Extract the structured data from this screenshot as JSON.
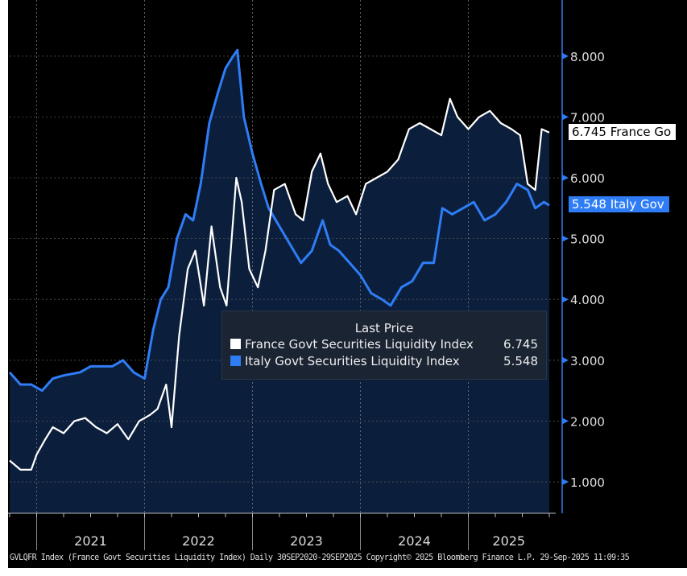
{
  "chart_data": {
    "type": "line",
    "title": "",
    "xlabel": "",
    "ylabel": "",
    "ylim": [
      0.5,
      8.8
    ],
    "xlim": [
      2020.75,
      2025.75
    ],
    "y_ticks": [
      "1.000",
      "2.000",
      "3.000",
      "4.000",
      "5.000",
      "6.000",
      "7.000",
      "8.000"
    ],
    "x_ticks": [
      "2021",
      "2022",
      "2023",
      "2024",
      "2025"
    ],
    "legend_title": "Last Price",
    "series": [
      {
        "name": "France Govt Securities Liquidity Index",
        "last": "6.745",
        "tag": "6.745 France Go",
        "color": "#ffffff",
        "x": [
          2020.75,
          2020.85,
          2020.95,
          2021.0,
          2021.08,
          2021.15,
          2021.25,
          2021.35,
          2021.45,
          2021.55,
          2021.65,
          2021.75,
          2021.85,
          2021.95,
          2022.05,
          2022.12,
          2022.2,
          2022.25,
          2022.32,
          2022.4,
          2022.47,
          2022.55,
          2022.62,
          2022.7,
          2022.76,
          2022.85,
          2022.9,
          2022.97,
          2023.05,
          2023.12,
          2023.2,
          2023.3,
          2023.4,
          2023.47,
          2023.55,
          2023.63,
          2023.7,
          2023.78,
          2023.88,
          2023.96,
          2024.05,
          2024.15,
          2024.25,
          2024.35,
          2024.45,
          2024.55,
          2024.65,
          2024.75,
          2024.83,
          2024.9,
          2025.0,
          2025.1,
          2025.2,
          2025.3,
          2025.4,
          2025.48,
          2025.55,
          2025.62,
          2025.68,
          2025.75
        ],
        "y": [
          1.35,
          1.2,
          1.2,
          1.45,
          1.7,
          1.9,
          1.8,
          2.0,
          2.05,
          1.9,
          1.8,
          1.95,
          1.7,
          2.0,
          2.1,
          2.2,
          2.6,
          1.9,
          3.4,
          4.5,
          4.8,
          3.9,
          5.2,
          4.2,
          3.9,
          6.0,
          5.6,
          4.5,
          4.2,
          4.8,
          5.8,
          5.9,
          5.4,
          5.3,
          6.1,
          6.4,
          5.9,
          5.6,
          5.7,
          5.4,
          5.9,
          6.0,
          6.1,
          6.3,
          6.8,
          6.9,
          6.8,
          6.7,
          7.3,
          7.0,
          6.8,
          7.0,
          7.1,
          6.9,
          6.8,
          6.7,
          5.9,
          5.8,
          6.8,
          6.745
        ]
      },
      {
        "name": "Italy Govt Securities Liquidity Index",
        "last": "5.548",
        "tag": "5.548 Italy Gov",
        "color": "#2f7df6",
        "x": [
          2020.75,
          2020.85,
          2020.95,
          2021.05,
          2021.15,
          2021.25,
          2021.4,
          2021.5,
          2021.6,
          2021.7,
          2021.8,
          2021.9,
          2022.0,
          2022.08,
          2022.15,
          2022.22,
          2022.3,
          2022.38,
          2022.45,
          2022.52,
          2022.6,
          2022.68,
          2022.75,
          2022.82,
          2022.86,
          2022.92,
          2023.0,
          2023.08,
          2023.15,
          2023.25,
          2023.35,
          2023.45,
          2023.55,
          2023.65,
          2023.72,
          2023.8,
          2023.9,
          2024.0,
          2024.1,
          2024.2,
          2024.28,
          2024.38,
          2024.48,
          2024.58,
          2024.68,
          2024.76,
          2024.85,
          2024.95,
          2025.05,
          2025.15,
          2025.25,
          2025.35,
          2025.45,
          2025.55,
          2025.62,
          2025.7,
          2025.75
        ],
        "y": [
          2.8,
          2.6,
          2.6,
          2.5,
          2.7,
          2.75,
          2.8,
          2.9,
          2.9,
          2.9,
          3.0,
          2.8,
          2.7,
          3.5,
          4.0,
          4.2,
          5.0,
          5.4,
          5.3,
          5.9,
          6.9,
          7.4,
          7.8,
          8.0,
          8.1,
          7.0,
          6.4,
          5.9,
          5.5,
          5.2,
          4.9,
          4.6,
          4.8,
          5.3,
          4.9,
          4.8,
          4.6,
          4.4,
          4.1,
          4.0,
          3.9,
          4.2,
          4.3,
          4.6,
          4.6,
          5.5,
          5.4,
          5.5,
          5.6,
          5.3,
          5.4,
          5.6,
          5.9,
          5.8,
          5.5,
          5.6,
          5.548
        ]
      }
    ]
  },
  "footer": "GVLQFR Index (France Govt Securities Liquidity Index)  Daily 30SEP2020-29SEP2025 Copyright© 2025 Bloomberg Finance L.P.  29-Sep-2025 11:09:35"
}
